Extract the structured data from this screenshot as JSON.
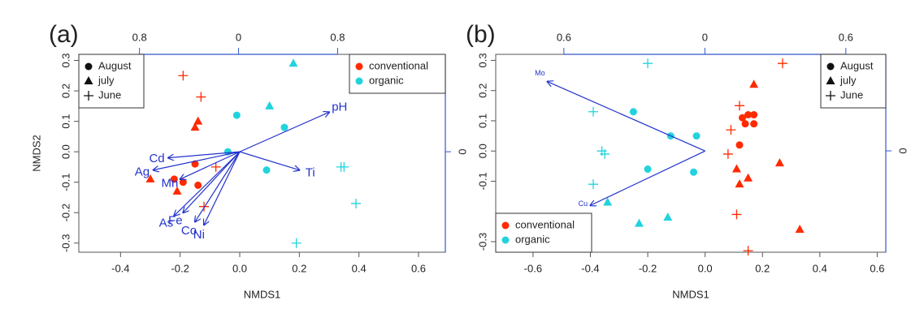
{
  "chart_data": [
    {
      "type": "scatter",
      "panel_label": "(a)",
      "xlabel": "NMDS1",
      "ylabel": "NMDS2",
      "xlim": [
        -0.54,
        0.69
      ],
      "ylim": [
        -0.33,
        0.32
      ],
      "xticks": [
        -0.4,
        -0.2,
        {
          "value": 0,
          "label": "0.0"
        },
        0.2,
        0.4,
        0.6
      ],
      "yticks": [
        -0.3,
        -0.2,
        -0.1,
        {
          "value": 0,
          "label": "0.0"
        },
        0.1,
        0.2,
        0.3
      ],
      "x2lim": [
        -1.29,
        1.67
      ],
      "x2ticks": [
        {
          "value": -0.8,
          "label": "0.8"
        },
        0,
        0.8
      ],
      "y2lim": [
        -1.3,
        1.26
      ],
      "y2ticks": [
        0
      ],
      "axis2_color": "#3355cc",
      "vector_color": "#2233cc",
      "shape_legend_position": "upper left",
      "color_legend_position": "upper right",
      "shape_legend": [
        {
          "name": "August",
          "shape": "circle"
        },
        {
          "name": "july",
          "shape": "triangle"
        },
        {
          "name": "June",
          "shape": "plus"
        }
      ],
      "series": [
        {
          "name": "conventional",
          "color": "#ff2a00",
          "points": [
            {
              "x": -0.15,
              "y": -0.04,
              "shape": "circle"
            },
            {
              "x": -0.22,
              "y": -0.09,
              "shape": "circle"
            },
            {
              "x": -0.19,
              "y": -0.1,
              "shape": "circle"
            },
            {
              "x": -0.14,
              "y": -0.11,
              "shape": "circle"
            },
            {
              "x": -0.14,
              "y": 0.1,
              "shape": "triangle"
            },
            {
              "x": -0.15,
              "y": 0.08,
              "shape": "triangle"
            },
            {
              "x": -0.3,
              "y": -0.09,
              "shape": "triangle"
            },
            {
              "x": -0.21,
              "y": -0.13,
              "shape": "triangle"
            },
            {
              "x": -0.19,
              "y": 0.25,
              "shape": "plus"
            },
            {
              "x": -0.13,
              "y": 0.18,
              "shape": "plus"
            },
            {
              "x": -0.08,
              "y": -0.05,
              "shape": "plus"
            },
            {
              "x": -0.12,
              "y": -0.18,
              "shape": "plus"
            }
          ]
        },
        {
          "name": "organic",
          "color": "#22d3de",
          "points": [
            {
              "x": -0.01,
              "y": 0.12,
              "shape": "circle"
            },
            {
              "x": 0.15,
              "y": 0.08,
              "shape": "circle"
            },
            {
              "x": -0.04,
              "y": 0.0,
              "shape": "circle"
            },
            {
              "x": 0.09,
              "y": -0.06,
              "shape": "circle"
            },
            {
              "x": 0.18,
              "y": 0.29,
              "shape": "triangle"
            },
            {
              "x": 0.1,
              "y": 0.15,
              "shape": "triangle"
            },
            {
              "x": 0.34,
              "y": -0.05,
              "shape": "plus"
            },
            {
              "x": 0.35,
              "y": -0.05,
              "shape": "plus"
            },
            {
              "x": 0.39,
              "y": -0.17,
              "shape": "plus"
            },
            {
              "x": 0.19,
              "y": -0.3,
              "shape": "plus"
            }
          ]
        }
      ],
      "vectors": [
        {
          "label": "pH",
          "x": 0.3,
          "y": 0.13
        },
        {
          "label": "Ti",
          "x": 0.2,
          "y": -0.06
        },
        {
          "label": "Cd",
          "x": -0.24,
          "y": -0.02
        },
        {
          "label": "Ag",
          "x": -0.29,
          "y": -0.06
        },
        {
          "label": "Mn",
          "x": -0.2,
          "y": -0.09
        },
        {
          "label": "As",
          "x": -0.22,
          "y": -0.21
        },
        {
          "label": "Fe",
          "x": -0.19,
          "y": -0.2
        },
        {
          "label": "Co",
          "x": -0.15,
          "y": -0.23
        },
        {
          "label": "Ni",
          "x": -0.12,
          "y": -0.24
        }
      ]
    },
    {
      "type": "scatter",
      "panel_label": "(b)",
      "xlabel": "NMDS1",
      "xlim": [
        -0.73,
        0.63
      ],
      "ylim": [
        -0.335,
        0.32
      ],
      "xticks": [
        -0.6,
        -0.4,
        -0.2,
        {
          "value": 0,
          "label": "0.0"
        },
        0.2,
        0.4,
        0.6
      ],
      "yticks": [
        -0.3,
        -0.1,
        {
          "value": 0,
          "label": "0.0"
        },
        0.1,
        0.2,
        0.3
      ],
      "x2lim": [
        -0.89,
        0.77
      ],
      "x2ticks": [
        {
          "value": -0.6,
          "label": "0.6"
        },
        0,
        0.6
      ],
      "y2lim": [
        -1.05,
        1.0
      ],
      "y2ticks": [
        0
      ],
      "axis2_color": "#3355cc",
      "vector_color": "#2233cc",
      "shape_legend_position": "upper right",
      "color_legend_position": "lower left",
      "shape_legend": [
        {
          "name": "August",
          "shape": "circle"
        },
        {
          "name": "july",
          "shape": "triangle"
        },
        {
          "name": "June",
          "shape": "plus"
        }
      ],
      "series": [
        {
          "name": "conventional",
          "color": "#ff2a00",
          "points": [
            {
              "x": 0.13,
              "y": 0.11,
              "shape": "circle"
            },
            {
              "x": 0.15,
              "y": 0.12,
              "shape": "circle"
            },
            {
              "x": 0.17,
              "y": 0.12,
              "shape": "circle"
            },
            {
              "x": 0.14,
              "y": 0.09,
              "shape": "circle"
            },
            {
              "x": 0.17,
              "y": 0.09,
              "shape": "circle"
            },
            {
              "x": 0.12,
              "y": 0.02,
              "shape": "circle"
            },
            {
              "x": 0.17,
              "y": 0.22,
              "shape": "triangle"
            },
            {
              "x": 0.11,
              "y": -0.06,
              "shape": "triangle"
            },
            {
              "x": 0.15,
              "y": -0.09,
              "shape": "triangle"
            },
            {
              "x": 0.12,
              "y": -0.11,
              "shape": "triangle"
            },
            {
              "x": 0.26,
              "y": -0.04,
              "shape": "triangle"
            },
            {
              "x": 0.33,
              "y": -0.26,
              "shape": "triangle"
            },
            {
              "x": 0.27,
              "y": 0.29,
              "shape": "plus"
            },
            {
              "x": 0.12,
              "y": 0.15,
              "shape": "plus"
            },
            {
              "x": 0.09,
              "y": 0.07,
              "shape": "plus"
            },
            {
              "x": 0.08,
              "y": -0.01,
              "shape": "plus"
            },
            {
              "x": 0.11,
              "y": -0.21,
              "shape": "plus"
            },
            {
              "x": 0.15,
              "y": -0.33,
              "shape": "plus"
            }
          ]
        },
        {
          "name": "organic",
          "color": "#22d3de",
          "points": [
            {
              "x": -0.25,
              "y": 0.13,
              "shape": "circle"
            },
            {
              "x": -0.12,
              "y": 0.05,
              "shape": "circle"
            },
            {
              "x": -0.03,
              "y": 0.05,
              "shape": "circle"
            },
            {
              "x": -0.2,
              "y": -0.06,
              "shape": "circle"
            },
            {
              "x": -0.04,
              "y": -0.07,
              "shape": "circle"
            },
            {
              "x": -0.34,
              "y": -0.17,
              "shape": "triangle"
            },
            {
              "x": -0.23,
              "y": -0.24,
              "shape": "triangle"
            },
            {
              "x": -0.13,
              "y": -0.22,
              "shape": "triangle"
            },
            {
              "x": -0.2,
              "y": 0.29,
              "shape": "plus"
            },
            {
              "x": -0.39,
              "y": 0.13,
              "shape": "plus"
            },
            {
              "x": -0.36,
              "y": 0.0,
              "shape": "plus"
            },
            {
              "x": -0.35,
              "y": -0.01,
              "shape": "plus"
            },
            {
              "x": -0.39,
              "y": -0.11,
              "shape": "plus"
            }
          ]
        }
      ],
      "vectors": [
        {
          "label": "Mo",
          "x": -0.55,
          "y": 0.23
        },
        {
          "label": "Cu",
          "x": -0.4,
          "y": -0.18
        }
      ]
    }
  ]
}
